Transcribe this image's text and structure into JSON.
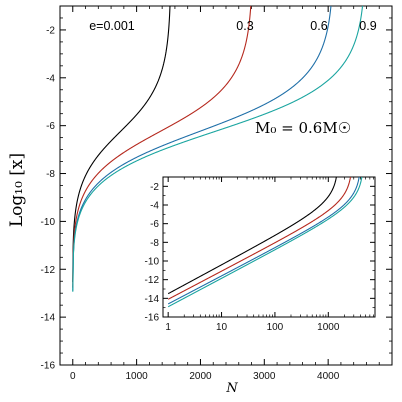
{
  "chart_data": [
    {
      "type": "line",
      "xlabel": "N",
      "ylabel": "Log₁₀ [x]",
      "xlim": [
        -200,
        5000
      ],
      "ylim": [
        -16,
        -1
      ],
      "xticks": [
        0,
        1000,
        2000,
        3000,
        4000
      ],
      "yticks": [
        -2,
        -4,
        -6,
        -8,
        -10,
        -12,
        -14,
        -16
      ],
      "annotation": "M₀ = 0.6M☉",
      "series": [
        {
          "name": "e=0.001",
          "label": "e=0.001",
          "color": "#000000",
          "n_max": 1540,
          "y_start": -15.2,
          "y_end": -1.0
        },
        {
          "name": "0.3",
          "label": "0.3",
          "color": "#b5281d",
          "n_max": 2820,
          "y_start": -15.2,
          "y_end": -1.0
        },
        {
          "name": "0.6",
          "label": "0.6",
          "color": "#1f6fa8",
          "n_max": 4090,
          "y_start": -15.2,
          "y_end": -1.0
        },
        {
          "name": "0.9",
          "label": "0.9",
          "color": "#1aa5a0",
          "n_max": 4590,
          "y_start": -15.2,
          "y_end": -1.0
        }
      ]
    },
    {
      "type": "line",
      "inset": true,
      "xscale": "log",
      "xlim": [
        0.8,
        7500
      ],
      "ylim": [
        -16,
        -1
      ],
      "xticks": [
        1,
        10,
        100,
        1000
      ],
      "yticks": [
        -2,
        -4,
        -6,
        -8,
        -10,
        -12,
        -14,
        -16
      ],
      "series": [
        {
          "name": "e=0.001",
          "color": "#000000",
          "n_max": 1540,
          "y_at_n1": -13.5
        },
        {
          "name": "0.3",
          "color": "#b5281d",
          "n_max": 2820,
          "y_at_n1": -14.1
        },
        {
          "name": "0.6",
          "color": "#1f6fa8",
          "n_max": 4090,
          "y_at_n1": -14.6
        },
        {
          "name": "0.9",
          "color": "#1aa5a0",
          "n_max": 4590,
          "y_at_n1": -14.9
        }
      ]
    }
  ]
}
